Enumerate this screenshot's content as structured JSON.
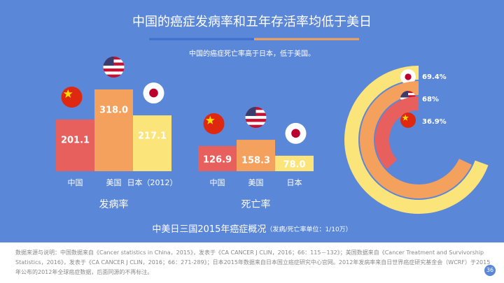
{
  "title": "中国的癌症发病率和五年存活率均低于美日",
  "subtitle": "中国的癌症死亡率高于日本，低于美国。",
  "chart_data": [
    {
      "type": "bar",
      "label": "发病率",
      "categories": [
        "中国",
        "美国",
        "日本（2012）"
      ],
      "values": [
        201.1,
        318.0,
        217.1
      ],
      "value_labels": [
        "201.1",
        "318.0",
        "217.1"
      ],
      "colors": [
        "#e8605e",
        "#f5a15e",
        "#fbe57a"
      ]
    },
    {
      "type": "bar",
      "label": "死亡率",
      "categories": [
        "中国",
        "美国",
        "日本"
      ],
      "values": [
        126.9,
        158.3,
        78.0
      ],
      "value_labels": [
        "126.9",
        "158.3",
        "78.0"
      ],
      "colors": [
        "#e8605e",
        "#f5a15e",
        "#fbe57a"
      ]
    },
    {
      "type": "radial",
      "values": [
        69.4,
        68,
        36.9
      ],
      "value_labels": [
        "69.4%",
        "68%",
        "36.9%"
      ],
      "colors": [
        "#fbe57a",
        "#f5a15e",
        "#e8605e"
      ]
    }
  ],
  "caption": "中美日三国2015年癌症概况",
  "caption_note": "（发病/死亡率单位：1/10万）",
  "footer": "数据来源与说明：中国数据来自《Cancer statistics in China，2015》，发表于《CA CANCER J CLIN，2016；66：115－132》；美国数据来自《Cancer Treatment and Survivorship Statistics，2016》，发表于《CA CANCER J CLIN，2016；66：271-289》；日本2015年数据来自日本国立癌症研究中心官网。2012年发病率来自日世界癌症研究基金会（WCRF）于2015年公布的2012年全球癌症数据，后面同源的不再标注。",
  "page_number": "36"
}
